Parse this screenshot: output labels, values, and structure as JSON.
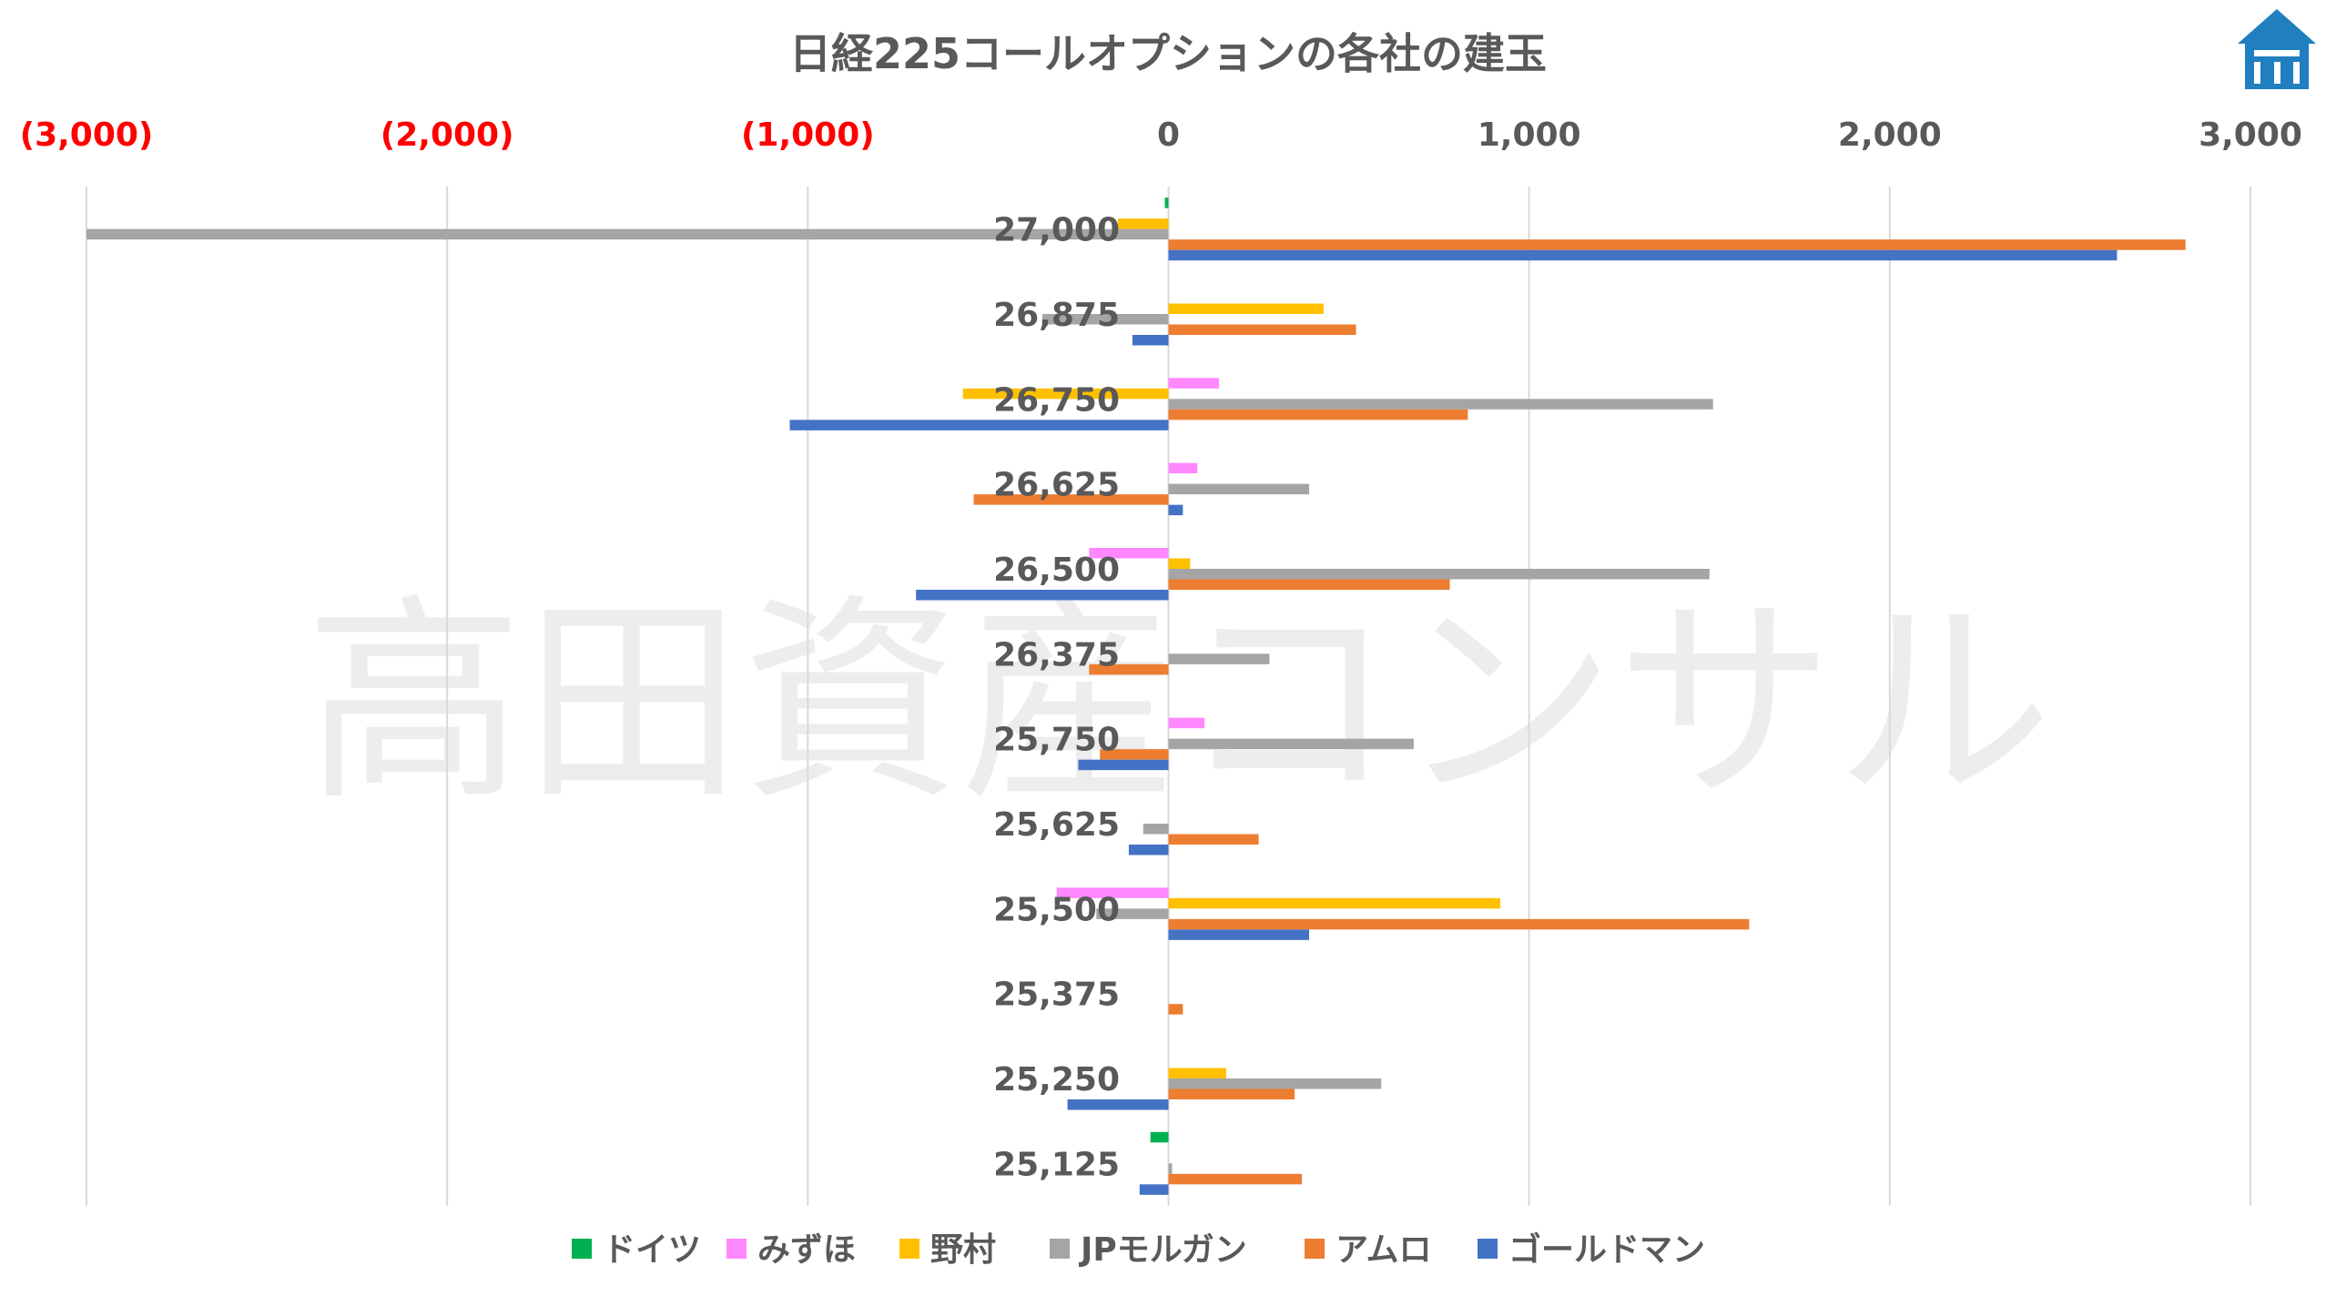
{
  "watermark": "高田資産コンサル",
  "chart_data": {
    "type": "bar",
    "orientation": "horizontal",
    "title": "日経225コールオプションの各社の建玉",
    "xlim": [
      -3000,
      3000
    ],
    "ticks": [
      {
        "value": -3000,
        "label": "(3,000)",
        "color": "#ff0000"
      },
      {
        "value": -2000,
        "label": "(2,000)",
        "color": "#ff0000"
      },
      {
        "value": -1000,
        "label": "(1,000)",
        "color": "#ff0000"
      },
      {
        "value": 0,
        "label": "0",
        "color": "#595959"
      },
      {
        "value": 1000,
        "label": "1,000",
        "color": "#595959"
      },
      {
        "value": 2000,
        "label": "2,000",
        "color": "#595959"
      },
      {
        "value": 3000,
        "label": "3,000",
        "color": "#595959"
      }
    ],
    "grid": true,
    "legend_position": "bottom",
    "categories": [
      "27,000",
      "26,875",
      "26,750",
      "26,625",
      "26,500",
      "26,375",
      "25,750",
      "25,625",
      "25,500",
      "25,375",
      "25,250",
      "25,125"
    ],
    "series": [
      {
        "name": "ドイツ",
        "color": "#00b050",
        "values": [
          -10,
          0,
          0,
          0,
          0,
          0,
          0,
          0,
          0,
          0,
          0,
          -50
        ]
      },
      {
        "name": "みずほ",
        "color": "#ff88ff",
        "values": [
          0,
          0,
          140,
          80,
          -220,
          0,
          100,
          0,
          -310,
          0,
          0,
          0
        ]
      },
      {
        "name": "野村",
        "color": "#ffc000",
        "values": [
          -140,
          430,
          -570,
          0,
          60,
          0,
          0,
          0,
          920,
          0,
          160,
          0
        ]
      },
      {
        "name": "JPモルガン",
        "color": "#a5a5a5",
        "values": [
          -3000,
          -350,
          1510,
          390,
          1500,
          280,
          680,
          -70,
          -200,
          0,
          590,
          10
        ]
      },
      {
        "name": "アムロ",
        "color": "#ed7d31",
        "values": [
          2820,
          520,
          830,
          -540,
          780,
          -220,
          -190,
          250,
          1610,
          40,
          350,
          370
        ]
      },
      {
        "name": "ゴールドマン",
        "color": "#4472c4",
        "values": [
          2630,
          -100,
          -1050,
          40,
          -700,
          0,
          -250,
          -110,
          390,
          0,
          -280,
          -80
        ]
      }
    ]
  },
  "logo": {
    "name": "takata-logo",
    "color": "#1f7fbf"
  }
}
